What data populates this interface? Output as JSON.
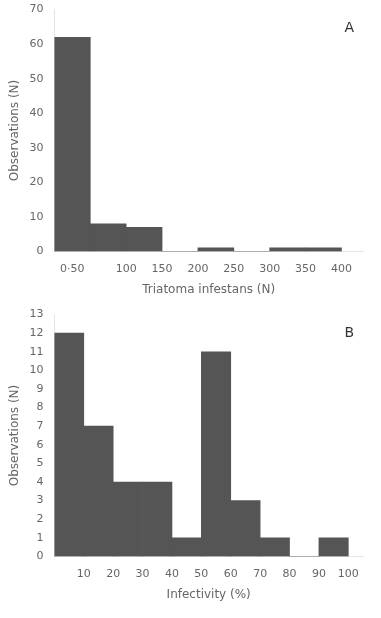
{
  "chart_data": [
    {
      "type": "histogram",
      "xlabel": "Triatoma infestans (N)",
      "ylabel": "Observations (N)",
      "bins": [
        0,
        50,
        100,
        150,
        200,
        250,
        300,
        350,
        400
      ],
      "values": [
        62,
        8,
        7,
        0,
        1,
        0,
        1,
        1
      ],
      "color": "#555555",
      "xlim": [
        0,
        430
      ],
      "xticks": [
        {
          "value": 25,
          "label": "0·50"
        },
        100,
        150,
        200,
        250,
        300,
        350,
        400
      ],
      "ylim": [
        0,
        70
      ],
      "yticks": [
        0,
        10,
        20,
        30,
        40,
        50,
        60,
        70
      ],
      "annotation": "A",
      "grid": false
    },
    {
      "type": "histogram",
      "xlabel": "Infectivity (%)",
      "ylabel": "Observations (N)",
      "bins": [
        0,
        10,
        20,
        30,
        40,
        50,
        60,
        70,
        80,
        90,
        100
      ],
      "values": [
        12,
        7,
        4,
        4,
        1,
        11,
        3,
        1,
        0,
        1
      ],
      "color": "#555555",
      "xlim": [
        0,
        105
      ],
      "xticks": [
        10,
        20,
        30,
        40,
        50,
        60,
        70,
        80,
        90,
        100
      ],
      "ylim": [
        0,
        13
      ],
      "yticks": [
        0,
        1,
        2,
        3,
        4,
        5,
        6,
        7,
        8,
        9,
        10,
        11,
        12,
        13
      ],
      "annotation": "B",
      "grid": false
    }
  ]
}
